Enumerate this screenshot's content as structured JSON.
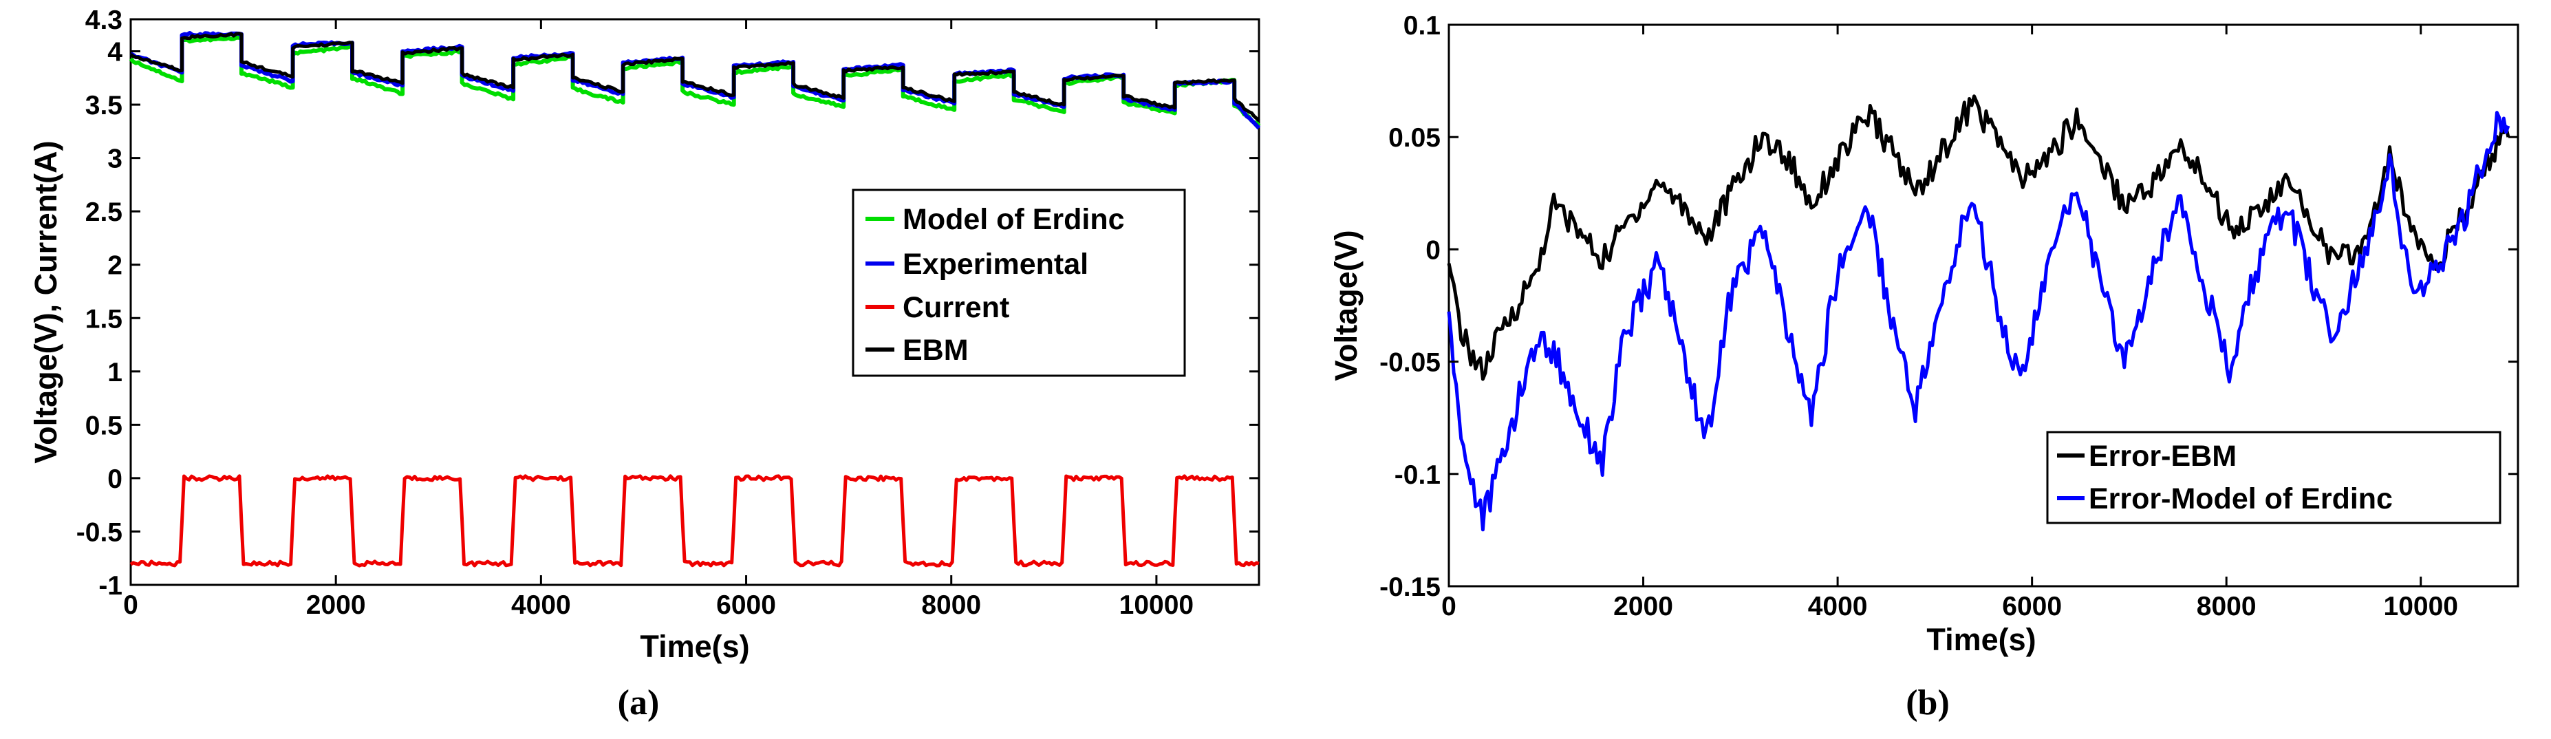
{
  "chart_data": [
    {
      "type": "line",
      "caption": "(a)",
      "xlabel": "Time(s)",
      "ylabel": "Voltage(V), Current(A)",
      "xlim": [
        0,
        11000
      ],
      "ylim": [
        -1,
        4.3
      ],
      "xticks": [
        0,
        2000,
        4000,
        6000,
        8000,
        10000
      ],
      "xtick_labels": [
        "0",
        "2000",
        "4000",
        "6000",
        "8000",
        "10000"
      ],
      "yticks": [
        -1,
        -0.5,
        0,
        0.5,
        1,
        1.5,
        2,
        2.5,
        3,
        3.5,
        4,
        4.3
      ],
      "ytick_labels": [
        "-1",
        "-0.5",
        "0",
        "0.5",
        "1",
        "1.5",
        "2",
        "2.5",
        "3",
        "3.5",
        "4",
        "4.3"
      ],
      "legend_position": "center-right",
      "series": [
        {
          "name": "Model of Erdinc",
          "color": "#00dd00",
          "x": [
            0,
            500,
            500,
            1080,
            1080,
            1580,
            1580,
            2160,
            2160,
            2650,
            2650,
            3230,
            3230,
            3730,
            3730,
            4310,
            4310,
            4800,
            4800,
            5380,
            5380,
            5880,
            5880,
            6460,
            6460,
            6950,
            6950,
            7530,
            7530,
            8030,
            8030,
            8610,
            8610,
            9100,
            9100,
            9680,
            9680,
            10180,
            10180,
            10760,
            10760,
            11000
          ],
          "y": [
            3.92,
            3.72,
            4.1,
            4.12,
            3.8,
            3.66,
            3.98,
            4.04,
            3.75,
            3.6,
            3.95,
            4.0,
            3.7,
            3.55,
            3.88,
            3.94,
            3.65,
            3.52,
            3.84,
            3.9,
            3.62,
            3.5,
            3.8,
            3.86,
            3.6,
            3.48,
            3.77,
            3.83,
            3.58,
            3.45,
            3.72,
            3.78,
            3.55,
            3.43,
            3.7,
            3.76,
            3.52,
            3.42,
            3.68,
            3.73,
            3.5,
            3.3
          ]
        },
        {
          "name": "Experimental",
          "color": "#0000ee",
          "x": [
            0,
            500,
            500,
            1080,
            1080,
            1580,
            1580,
            2160,
            2160,
            2650,
            2650,
            3230,
            3230,
            3730,
            3730,
            4310,
            4310,
            4800,
            4800,
            5380,
            5380,
            5880,
            5880,
            6460,
            6460,
            6950,
            6950,
            7530,
            7530,
            8030,
            8030,
            8610,
            8610,
            9100,
            9100,
            9680,
            9680,
            10180,
            10180,
            10760,
            10760,
            11000
          ],
          "y": [
            3.97,
            3.8,
            4.16,
            4.16,
            3.87,
            3.72,
            4.06,
            4.08,
            3.8,
            3.68,
            4.0,
            4.04,
            3.77,
            3.63,
            3.94,
            3.98,
            3.73,
            3.6,
            3.89,
            3.94,
            3.7,
            3.57,
            3.86,
            3.9,
            3.67,
            3.54,
            3.83,
            3.87,
            3.64,
            3.51,
            3.79,
            3.82,
            3.6,
            3.48,
            3.75,
            3.78,
            3.56,
            3.45,
            3.7,
            3.72,
            3.52,
            3.28
          ]
        },
        {
          "name": "Current",
          "color": "#ee0000",
          "x": [
            0,
            480,
            520,
            1060,
            1100,
            1560,
            1600,
            2140,
            2180,
            2630,
            2670,
            3210,
            3250,
            3710,
            3750,
            4290,
            4330,
            4780,
            4820,
            5360,
            5400,
            5860,
            5900,
            6440,
            6480,
            6930,
            6970,
            7510,
            7550,
            8010,
            8050,
            8590,
            8630,
            9080,
            9120,
            9660,
            9700,
            10160,
            10200,
            10740,
            10780,
            11000
          ],
          "y": [
            -0.8,
            -0.8,
            0,
            0,
            -0.8,
            -0.8,
            0,
            0,
            -0.8,
            -0.8,
            0,
            0,
            -0.8,
            -0.8,
            0,
            0,
            -0.8,
            -0.8,
            0,
            0,
            -0.8,
            -0.8,
            0,
            0,
            -0.8,
            -0.8,
            0,
            0,
            -0.8,
            -0.8,
            0,
            0,
            -0.8,
            -0.8,
            0,
            0,
            -0.8,
            -0.8,
            0,
            0,
            -0.8,
            -0.8
          ]
        },
        {
          "name": "EBM",
          "color": "#000000",
          "x": [
            0,
            500,
            500,
            1080,
            1080,
            1580,
            1580,
            2160,
            2160,
            2650,
            2650,
            3230,
            3230,
            3730,
            3730,
            4310,
            4310,
            4800,
            4800,
            5380,
            5380,
            5880,
            5880,
            6460,
            6460,
            6950,
            6950,
            7530,
            7530,
            8030,
            8030,
            8610,
            8610,
            9100,
            9100,
            9680,
            9680,
            10180,
            10180,
            10760,
            10760,
            11000
          ],
          "y": [
            3.96,
            3.82,
            4.13,
            4.16,
            3.9,
            3.76,
            4.04,
            4.08,
            3.82,
            3.7,
            3.98,
            4.03,
            3.79,
            3.66,
            3.92,
            3.97,
            3.75,
            3.62,
            3.88,
            3.93,
            3.72,
            3.59,
            3.85,
            3.89,
            3.69,
            3.56,
            3.82,
            3.85,
            3.66,
            3.53,
            3.78,
            3.81,
            3.62,
            3.5,
            3.74,
            3.77,
            3.58,
            3.47,
            3.7,
            3.73,
            3.55,
            3.35
          ]
        }
      ]
    },
    {
      "type": "line",
      "caption": "(b)",
      "xlabel": "Time(s)",
      "ylabel": "Voltage(V)",
      "xlim": [
        0,
        11000
      ],
      "ylim": [
        -0.15,
        0.1
      ],
      "xticks": [
        0,
        2000,
        4000,
        6000,
        8000,
        10000
      ],
      "xtick_labels": [
        "0",
        "2000",
        "4000",
        "6000",
        "8000",
        "10000"
      ],
      "yticks": [
        -0.15,
        -0.1,
        -0.05,
        0,
        0.05,
        0.1
      ],
      "ytick_labels": [
        "-0.15",
        "-0.1",
        "-0.05",
        "0",
        "0.05",
        "0.1"
      ],
      "legend_position": "bottom-right",
      "series": [
        {
          "name": "Error-EBM",
          "color": "#000000",
          "x": [
            0,
            150,
            350,
            500,
            700,
            900,
            1080,
            1300,
            1580,
            1800,
            2160,
            2400,
            2650,
            2900,
            3230,
            3500,
            3730,
            4000,
            4310,
            4550,
            4800,
            5100,
            5380,
            5650,
            5880,
            6150,
            6460,
            6700,
            6950,
            7250,
            7530,
            7800,
            8030,
            8300,
            8610,
            8850,
            9100,
            9400,
            9680,
            9900,
            10180,
            10500,
            10760,
            10900
          ],
          "y": [
            -0.01,
            -0.04,
            -0.055,
            -0.04,
            -0.025,
            -0.01,
            0.02,
            0.01,
            -0.005,
            0.01,
            0.03,
            0.02,
            0.005,
            0.025,
            0.05,
            0.04,
            0.02,
            0.04,
            0.06,
            0.045,
            0.025,
            0.045,
            0.065,
            0.05,
            0.03,
            0.04,
            0.058,
            0.04,
            0.02,
            0.03,
            0.045,
            0.03,
            0.01,
            0.015,
            0.03,
            0.015,
            -0.005,
            0.0,
            0.04,
            0.01,
            -0.005,
            0.02,
            0.045,
            0.05
          ]
        },
        {
          "name": "Error-Model of Erdinc",
          "color": "#0000ff",
          "x": [
            0,
            150,
            350,
            500,
            700,
            900,
            1080,
            1300,
            1580,
            1800,
            2160,
            2400,
            2650,
            2900,
            3230,
            3500,
            3730,
            4000,
            4310,
            4550,
            4800,
            5100,
            5380,
            5650,
            5880,
            6150,
            6460,
            6700,
            6950,
            7250,
            7530,
            7800,
            8030,
            8300,
            8610,
            8850,
            9100,
            9400,
            9680,
            9900,
            10180,
            10500,
            10760,
            10900
          ],
          "y": [
            -0.03,
            -0.09,
            -0.12,
            -0.1,
            -0.07,
            -0.04,
            -0.045,
            -0.07,
            -0.095,
            -0.04,
            -0.005,
            -0.045,
            -0.085,
            -0.02,
            0.01,
            -0.04,
            -0.075,
            -0.01,
            0.02,
            -0.03,
            -0.07,
            -0.02,
            0.025,
            -0.025,
            -0.06,
            -0.01,
            0.03,
            -0.015,
            -0.05,
            -0.01,
            0.025,
            -0.02,
            -0.055,
            -0.01,
            0.02,
            -0.01,
            -0.04,
            -0.005,
            0.04,
            -0.02,
            -0.01,
            0.02,
            0.055,
            0.055
          ]
        }
      ]
    }
  ]
}
